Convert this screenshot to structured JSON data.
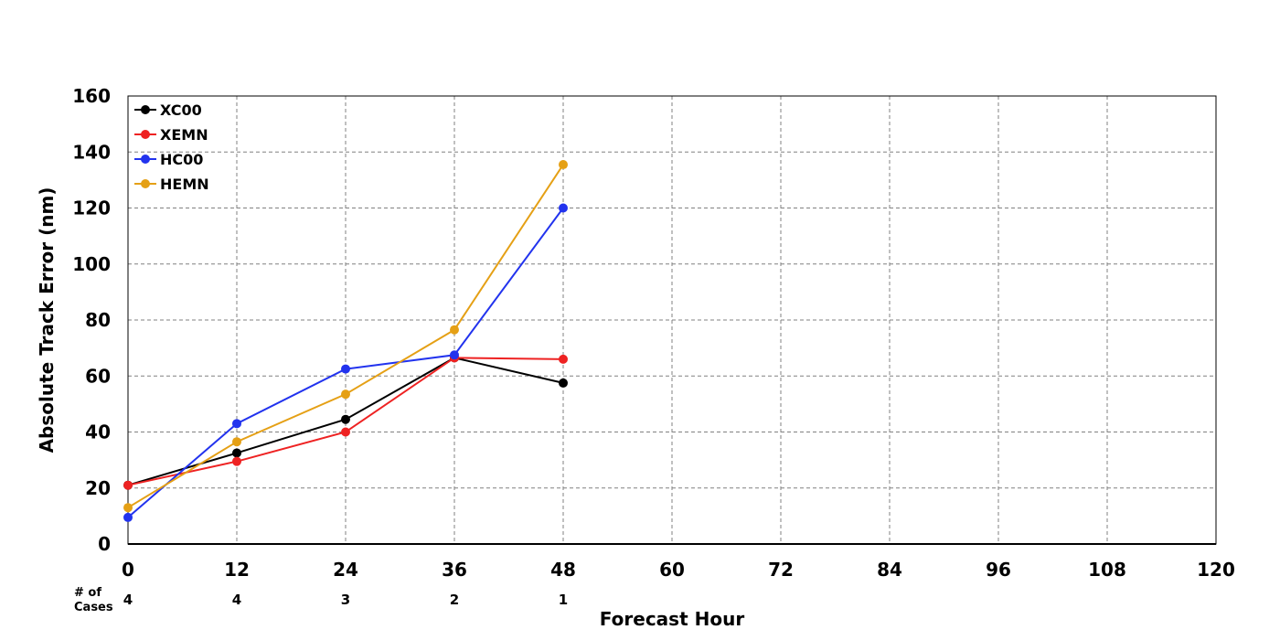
{
  "chart_data": {
    "type": "line",
    "title": "",
    "xlabel": "Forecast Hour",
    "ylabel": "Absolute Track Error (nm)",
    "xlim": [
      0,
      120
    ],
    "ylim": [
      0,
      160
    ],
    "x_ticks": [
      "0",
      "12",
      "24",
      "36",
      "48",
      "60",
      "72",
      "84",
      "96",
      "108",
      "120"
    ],
    "y_ticks": [
      "0",
      "20",
      "40",
      "60",
      "80",
      "100",
      "120",
      "140",
      "160"
    ],
    "grid": true,
    "legend_position": "top-left",
    "x": [
      0,
      12,
      24,
      36,
      48
    ],
    "series": [
      {
        "name": "XC00",
        "color": "#000000",
        "values": [
          21,
          32.5,
          44.5,
          66.5,
          57.5
        ]
      },
      {
        "name": "XEMN",
        "color": "#ee2222",
        "values": [
          21,
          29.5,
          40,
          66.5,
          66
        ]
      },
      {
        "name": "HC00",
        "color": "#2233ee",
        "values": [
          9.5,
          43,
          62.5,
          67.5,
          120
        ]
      },
      {
        "name": "HEMN",
        "color": "#e5a015",
        "values": [
          13,
          36.5,
          53.5,
          76.5,
          135.5
        ]
      }
    ],
    "cases": {
      "label_line1": "# of",
      "label_line2": "Cases",
      "x": [
        0,
        12,
        24,
        36,
        48
      ],
      "values": [
        "4",
        "4",
        "3",
        "2",
        "1"
      ]
    }
  }
}
